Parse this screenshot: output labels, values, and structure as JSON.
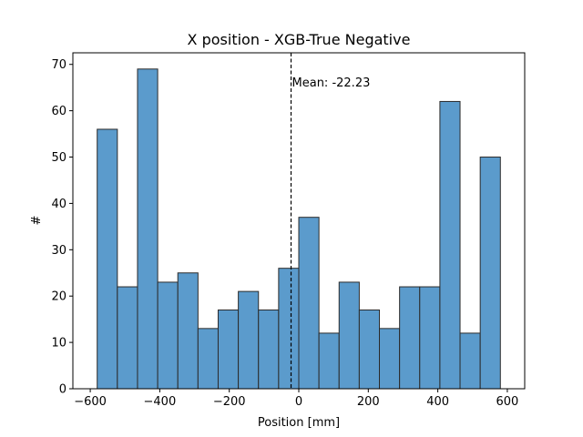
{
  "chart_data": {
    "type": "bar",
    "title": "X position - XGB-True Negative",
    "xlabel": "Position [mm]",
    "ylabel": "#",
    "xlim": [
      -650,
      650
    ],
    "ylim": [
      0,
      72.5
    ],
    "xticks": [
      -600,
      -400,
      -200,
      0,
      200,
      400,
      600
    ],
    "yticks": [
      0,
      10,
      20,
      30,
      40,
      50,
      60,
      70
    ],
    "xtick_labels": [
      "−600",
      "−400",
      "−200",
      "0",
      "200",
      "400",
      "600"
    ],
    "ytick_labels": [
      "0",
      "10",
      "20",
      "30",
      "40",
      "50",
      "60",
      "70"
    ],
    "bin_edges": [
      -580,
      -522,
      -464,
      -406,
      -348,
      -290,
      -232,
      -174,
      -116,
      -58,
      0,
      58,
      116,
      174,
      232,
      290,
      348,
      406,
      464,
      522,
      580
    ],
    "values": [
      56,
      22,
      69,
      23,
      25,
      13,
      17,
      21,
      17,
      26,
      37,
      12,
      23,
      17,
      13,
      22,
      22,
      62,
      12,
      50
    ],
    "mean_line": {
      "x": -22.23,
      "label": "Mean: -22.23"
    },
    "colors": {
      "bar_fill": "#5b9bcc",
      "bar_edge": "#2b2b2b",
      "mean_line": "#000000"
    },
    "grid": false
  }
}
